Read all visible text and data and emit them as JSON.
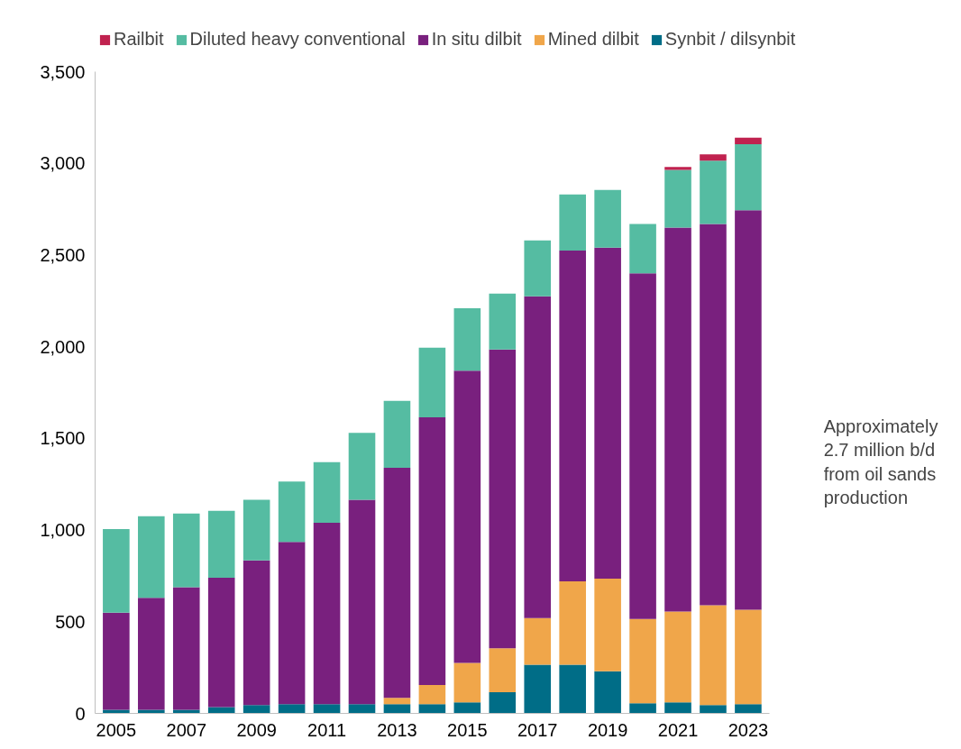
{
  "chart_data": {
    "type": "bar",
    "stacked": true,
    "categories": [
      "2005",
      null,
      "2007",
      null,
      "2009",
      null,
      "2011",
      null,
      "2013",
      null,
      "2015",
      null,
      "2017",
      null,
      "2019",
      null,
      "2021",
      null,
      "2023"
    ],
    "series": [
      {
        "name": "Synbit / dilsynbit",
        "color": "#006d87",
        "values": [
          20,
          20,
          20,
          35,
          45,
          50,
          50,
          50,
          50,
          50,
          60,
          115,
          265,
          265,
          230,
          55,
          60,
          45,
          50
        ]
      },
      {
        "name": "Mined dilbit",
        "color": "#f0a64a",
        "values": [
          0,
          0,
          0,
          0,
          0,
          0,
          0,
          0,
          35,
          105,
          215,
          240,
          255,
          455,
          505,
          460,
          495,
          545,
          515
        ]
      },
      {
        "name": "In situ dilbit",
        "color": "#79207e",
        "values": [
          530,
          610,
          668,
          705,
          790,
          885,
          990,
          1115,
          1255,
          1460,
          1595,
          1630,
          1755,
          1805,
          1805,
          1885,
          2095,
          2080,
          2180
        ]
      },
      {
        "name": "Diluted heavy conventional",
        "color": "#55bca2",
        "values": [
          455,
          445,
          402,
          365,
          330,
          330,
          330,
          365,
          365,
          380,
          340,
          305,
          305,
          305,
          315,
          270,
          315,
          345,
          360
        ]
      },
      {
        "name": "Railbit",
        "color": "#c0224f",
        "values": [
          null,
          null,
          null,
          null,
          null,
          null,
          null,
          null,
          null,
          null,
          null,
          null,
          null,
          null,
          null,
          null,
          15,
          35,
          35
        ]
      }
    ],
    "ylim": [
      0,
      3500
    ],
    "yticks": [
      0,
      {
        "value": 500,
        "label": "500"
      },
      {
        "value": 1000,
        "label": "1,000"
      },
      {
        "value": 1500,
        "label": "1,500"
      },
      {
        "value": 2000,
        "label": "2,000"
      },
      {
        "value": 2500,
        "label": "2,500"
      },
      {
        "value": 3000,
        "label": "3,000"
      },
      {
        "value": 3500,
        "label": "3,500"
      }
    ],
    "grid": false,
    "legend": "top",
    "annotations": [
      "Approximately\n2.7 million b/d\nfrom oil sands\nproduction"
    ]
  }
}
